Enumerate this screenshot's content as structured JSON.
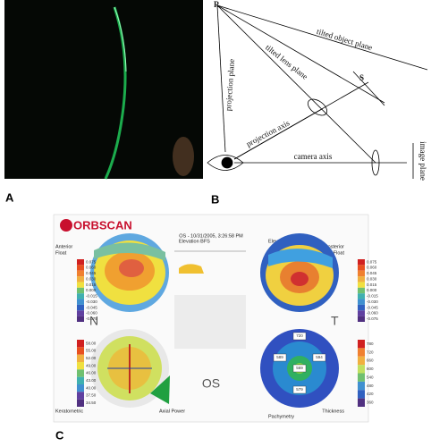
{
  "panels": [
    "A",
    "B",
    "C"
  ],
  "diagram": {
    "r": "R",
    "s": "S",
    "object_plane": "tilted object plane",
    "lens_plane": "tilted lens plane",
    "projection_plane": "projection plane",
    "projection_axis": "projection axis",
    "camera_axis": "camera axis",
    "image_plane": "image plane"
  },
  "orbscan": {
    "logo": "ORBSCAN",
    "title": "OS - 10/31/2005, 3:26:58 PM",
    "top_left": {
      "title": "Anterior",
      "subtitle": "Float",
      "header": "Elevation BFS"
    },
    "top_right": {
      "title": "Posterior",
      "subtitle": "Float",
      "header": "Elevation BFS"
    },
    "bottom_left": {
      "title": "Keratometric",
      "subtitle": "Axial Power"
    },
    "bottom_right": {
      "title": "Thickness",
      "subtitle": "Pachymetry"
    },
    "nasal": "N",
    "temporal": "T",
    "eye": "OS",
    "left_scale_top": [
      "0.075",
      "0.060",
      "0.045",
      "0.030",
      "0.015",
      "0.000",
      "-0.015",
      "-0.030",
      "-0.045",
      "-0.060",
      "-0.075"
    ],
    "left_scale_bottom": [
      "58.00",
      "55.00",
      "52.00",
      "49.00",
      "46.00",
      "43.00",
      "40.00",
      "37.50",
      "34.50"
    ],
    "right_scale_top": [
      "0.075",
      "0.060",
      "0.045",
      "0.030",
      "0.015",
      "0.000",
      "-0.015",
      "-0.030",
      "-0.045",
      "-0.060",
      "-0.075"
    ],
    "right_scale_bottom": [
      "780",
      "720",
      "660",
      "600",
      "540",
      "480",
      "420",
      "360"
    ],
    "thickness_points": [
      "720",
      "589",
      "569",
      "594",
      "579"
    ]
  }
}
